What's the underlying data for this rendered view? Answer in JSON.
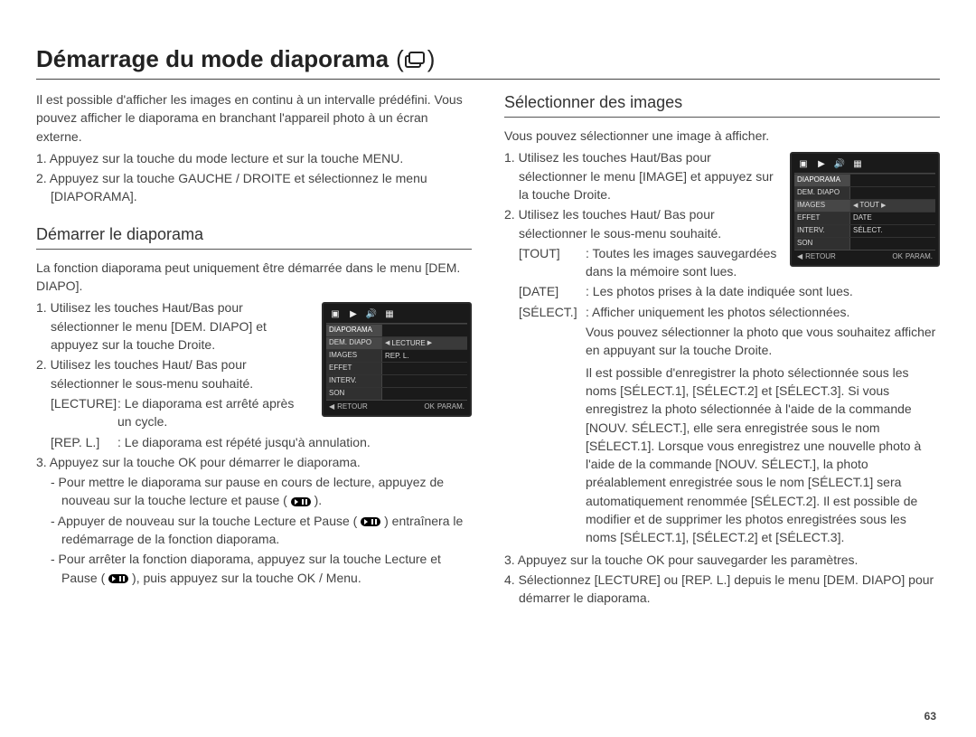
{
  "page_number": "63",
  "title": "Démarrage du mode diaporama",
  "title_icon_glyph": "(   )",
  "left": {
    "intro": "Il est possible d'afficher les images en continu à un intervalle prédéfini. Vous pouvez afficher le diaporama en branchant l'appareil photo à un écran externe.",
    "step1": "1. Appuyez sur la touche du mode lecture et sur la touche MENU.",
    "step2": "2. Appuyez sur la touche GAUCHE / DROITE et sélectionnez le menu [DIAPORAMA].",
    "heading": "Démarrer le diaporama",
    "lead": "La fonction diaporama peut uniquement être démarrée dans le menu [DEM. DIAPO].",
    "s1": "1. Utilisez les touches Haut/Bas pour sélectionner le menu [DEM. DIAPO] et appuyez sur la touche Droite.",
    "s2": "2. Utilisez les touches Haut/ Bas pour sélectionner le sous-menu souhaité.",
    "def1k": "[LECTURE]",
    "def1v": ": Le diaporama est arrêté après un cycle.",
    "def2k": "[REP. L.]",
    "def2v": ": Le diaporama est répété jusqu'à annulation.",
    "s3": "3. Appuyez sur la touche OK pour démarrer le diaporama.",
    "b1": "- Pour mettre le diaporama sur pause en cours de lecture, appuyez de nouveau sur la touche lecture et pause (        ).",
    "b2": "- Appuyer de nouveau sur la touche Lecture et Pause (        ) entraînera le redémarrage de la fonction diaporama.",
    "b3": "- Pour arrêter la fonction diaporama, appuyez sur la touche Lecture et Pause (        ), puis appuyez sur la touche OK / Menu."
  },
  "right": {
    "heading": "Sélectionner des images",
    "lead": "Vous pouvez sélectionner une image à afficher.",
    "s1": "1. Utilisez les touches Haut/Bas pour sélectionner le menu [IMAGE] et appuyez sur la touche Droite.",
    "s2": "2. Utilisez les touches Haut/ Bas pour sélectionner le sous-menu souhaité.",
    "d1k": "[TOUT]",
    "d1v": ": Toutes les images sauvegardées dans la mémoire sont lues.",
    "d2k": "[DATE]",
    "d2v": ": Les photos prises à la date indiquée sont lues.",
    "d3k": "[SÉLECT.]",
    "d3v": ": Afficher uniquement les photos sélectionnées.",
    "d3para": "Vous pouvez sélectionner la photo que vous souhaitez afficher en appuyant sur la touche Droite.",
    "d3para2": "Il est possible d'enregistrer la photo sélectionnée sous les noms [SÉLECT.1], [SÉLECT.2] et [SÉLECT.3].  Si vous enregistrez la photo sélectionnée à l'aide de la commande [NOUV. SÉLECT.], elle sera enregistrée sous le nom [SÉLECT.1]. Lorsque vous enregistrez une nouvelle photo à l'aide de la commande [NOUV. SÉLECT.], la photo préalablement enregistrée sous le nom [SÉLECT.1] sera automatiquement renommée [SÉLECT.2]. Il est possible de modifier et de supprimer les photos enregistrées sous les noms [SÉLECT.1], [SÉLECT.2] et [SÉLECT.3].",
    "s3": "3. Appuyez sur la touche OK pour sauvegarder les paramètres.",
    "s4": "4. Sélectionnez [LECTURE] ou [REP. L.] depuis le menu [DEM. DIAPO] pour démarrer le diaporama."
  },
  "screen1": {
    "header": "DIAPORAMA",
    "rows": [
      {
        "l": "DEM. DIAPO",
        "r": "LECTURE",
        "hl": true
      },
      {
        "l": "IMAGES",
        "r": "REP. L."
      },
      {
        "l": "EFFET",
        "r": ""
      },
      {
        "l": "INTERV.",
        "r": ""
      },
      {
        "l": "SON",
        "r": ""
      }
    ],
    "back": "RETOUR",
    "ok": "OK",
    "param": "PARAM."
  },
  "screen2": {
    "header": "DIAPORAMA",
    "rows": [
      {
        "l": "DEM. DIAPO",
        "r": ""
      },
      {
        "l": "IMAGES",
        "r": "TOUT",
        "hl": true
      },
      {
        "l": "EFFET",
        "r": "DATE"
      },
      {
        "l": "INTERV.",
        "r": "SÉLECT."
      },
      {
        "l": "SON",
        "r": ""
      }
    ],
    "back": "RETOUR",
    "ok": "OK",
    "param": "PARAM."
  },
  "colors": {
    "text": "#444444",
    "heading": "#333333",
    "rule": "#555555",
    "screen_bg": "#1a1a1a",
    "screen_hl": "#3a3a3a"
  }
}
